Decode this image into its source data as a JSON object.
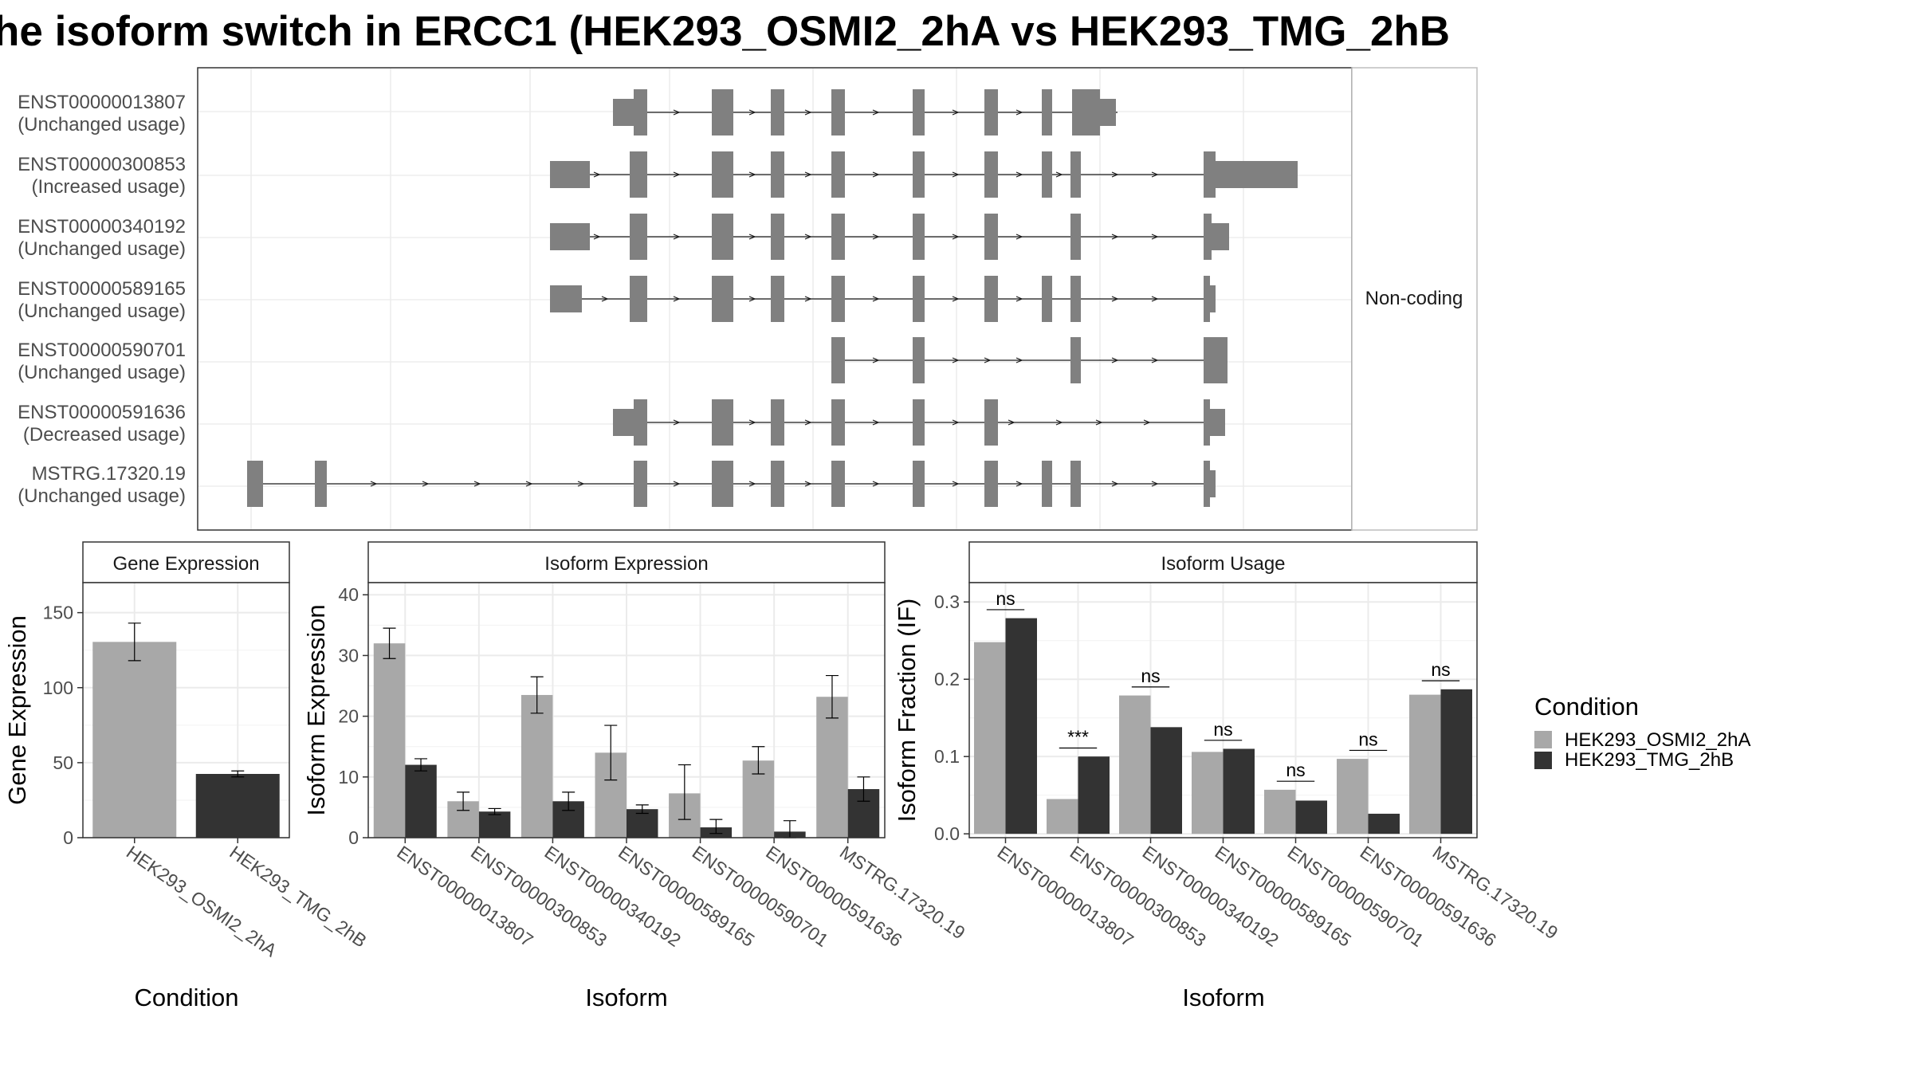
{
  "title": "he isoform switch in ERCC1 (HEK293_OSMI2_2hA vs HEK293_TMG_2hB",
  "colors": {
    "osmi": "#a8a8a8",
    "tmg": "#333333",
    "exon": "#808080",
    "grid": "#ebebeb",
    "panel_border": "#333333",
    "strip_border": "#bdbdbd",
    "axis_text": "#4d4d4d"
  },
  "chart_data": [
    {
      "type": "gene-structure",
      "facet_label": "Non-coding",
      "tracks": [
        {
          "id": "ENST00000013807",
          "usage": "(Unchanged usage)"
        },
        {
          "id": "ENST00000300853",
          "usage": "(Increased usage)"
        },
        {
          "id": "ENST00000340192",
          "usage": "(Unchanged usage)"
        },
        {
          "id": "ENST00000589165",
          "usage": "(Unchanged usage)"
        },
        {
          "id": "ENST00000590701",
          "usage": "(Unchanged usage)"
        },
        {
          "id": "ENST00000591636",
          "usage": "(Decreased usage)"
        },
        {
          "id": "MSTRG.17320.19",
          "usage": "(Unchanged usage)"
        }
      ]
    },
    {
      "type": "bar",
      "title": "Gene Expression",
      "xlabel": "Condition",
      "ylabel": "Gene Expression",
      "ylim": [
        0,
        170
      ],
      "yticks": [
        "0",
        "50",
        "100",
        "150"
      ],
      "categories": [
        "HEK293_OSMI2_2hA",
        "HEK293_TMG_2hB"
      ],
      "series": [
        {
          "condition": "HEK293_OSMI2_2hA",
          "values": [
            130.5,
            null
          ],
          "err_low": [
            118,
            null
          ],
          "err_high": [
            143,
            null
          ]
        },
        {
          "condition": "HEK293_TMG_2hB",
          "values": [
            null,
            42.5
          ],
          "err_low": [
            null,
            40.5
          ],
          "err_high": [
            null,
            44.5
          ]
        }
      ]
    },
    {
      "type": "bar",
      "title": "Isoform Expression",
      "xlabel": "Isoform",
      "ylabel": "Isoform Expression",
      "ylim": [
        0,
        42
      ],
      "yticks": [
        "0",
        "10",
        "20",
        "30",
        "40"
      ],
      "categories": [
        "ENST00000013807",
        "ENST00000300853",
        "ENST00000340192",
        "ENST00000589165",
        "ENST00000590701",
        "ENST00000591636",
        "MSTRG.17320.19"
      ],
      "series": [
        {
          "condition": "HEK293_OSMI2_2hA",
          "values": [
            32.0,
            6.0,
            23.5,
            14.0,
            7.3,
            12.7,
            23.2
          ],
          "err_low": [
            29.5,
            4.5,
            20.5,
            9.5,
            3.0,
            10.5,
            19.7
          ],
          "err_high": [
            34.5,
            7.5,
            26.5,
            18.5,
            12.0,
            15.0,
            26.7
          ]
        },
        {
          "condition": "HEK293_TMG_2hB",
          "values": [
            12.0,
            4.3,
            6.0,
            4.7,
            1.7,
            1.0,
            8.0
          ],
          "err_low": [
            11.0,
            3.8,
            4.5,
            4.0,
            0.7,
            0.0,
            6.0
          ],
          "err_high": [
            13.0,
            4.8,
            7.5,
            5.4,
            3.0,
            2.8,
            10.0
          ]
        }
      ]
    },
    {
      "type": "bar",
      "title": "Isoform Usage",
      "xlabel": "Isoform",
      "ylabel": "Isoform Fraction (IF)",
      "ylim": [
        -0.005,
        0.325
      ],
      "yticks": [
        "0.0",
        "0.1",
        "0.2",
        "0.3"
      ],
      "categories": [
        "ENST00000013807",
        "ENST00000300853",
        "ENST00000340192",
        "ENST00000589165",
        "ENST00000590701",
        "ENST00000591636",
        "MSTRG.17320.19"
      ],
      "series": [
        {
          "condition": "HEK293_OSMI2_2hA",
          "values": [
            0.248,
            0.045,
            0.179,
            0.106,
            0.057,
            0.097,
            0.18
          ]
        },
        {
          "condition": "HEK293_TMG_2hB",
          "values": [
            0.279,
            0.1,
            0.138,
            0.11,
            0.043,
            0.026,
            0.187
          ]
        }
      ],
      "significance": [
        "ns",
        "***",
        "ns",
        "ns",
        "ns",
        "ns",
        "ns"
      ]
    }
  ],
  "legend": {
    "title": "Condition",
    "items": [
      "HEK293_OSMI2_2hA",
      "HEK293_TMG_2hB"
    ]
  }
}
